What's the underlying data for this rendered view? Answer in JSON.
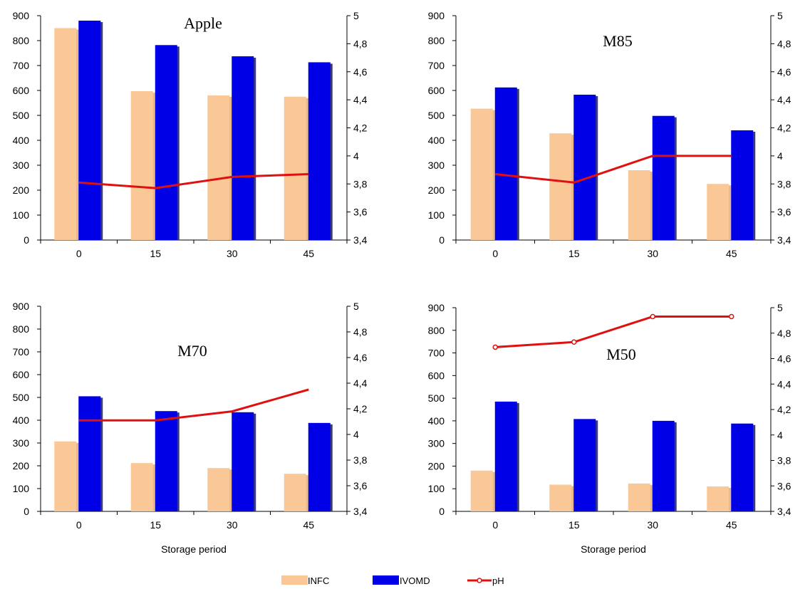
{
  "chart_data": [
    {
      "type": "bar",
      "title": "Apple",
      "categories": [
        "0",
        "15",
        "30",
        "45"
      ],
      "series": [
        {
          "name": "INFC",
          "values": [
            850,
            597,
            580,
            575
          ],
          "axis": "left",
          "color": "#FAC896"
        },
        {
          "name": "IVOMD",
          "values": [
            880,
            782,
            737,
            713
          ],
          "axis": "left",
          "color": "#0000E6"
        },
        {
          "name": "pH",
          "values": [
            3.81,
            3.77,
            3.85,
            3.87
          ],
          "axis": "right",
          "line": true,
          "color": "#E01010"
        }
      ],
      "xlabel": "",
      "ylim": [
        0,
        900
      ],
      "yticks": [
        "0",
        "100",
        "200",
        "300",
        "400",
        "500",
        "600",
        "700",
        "800",
        "900"
      ],
      "y2lim": [
        3.4,
        5
      ],
      "y2ticks": [
        "3,4",
        "3,6",
        "3,8",
        "4",
        "4,2",
        "4,4",
        "4,6",
        "4,8",
        "5"
      ]
    },
    {
      "type": "bar",
      "title": "M85",
      "categories": [
        "0",
        "15",
        "30",
        "45"
      ],
      "series": [
        {
          "name": "INFC",
          "values": [
            527,
            428,
            280,
            225
          ],
          "axis": "left",
          "color": "#FAC896"
        },
        {
          "name": "IVOMD",
          "values": [
            612,
            583,
            498,
            440
          ],
          "axis": "left",
          "color": "#0000E6"
        },
        {
          "name": "pH",
          "values": [
            3.87,
            3.81,
            4.0,
            4.0
          ],
          "axis": "right",
          "line": true,
          "color": "#E01010"
        }
      ],
      "xlabel": "",
      "ylim": [
        0,
        900
      ],
      "yticks": [
        "0",
        "100",
        "200",
        "300",
        "400",
        "500",
        "600",
        "700",
        "800",
        "900"
      ],
      "y2lim": [
        3.4,
        5
      ],
      "y2ticks": [
        "3,4",
        "3,6",
        "3,8",
        "4",
        "4,2",
        "4,4",
        "4,6",
        "4,8",
        "5"
      ]
    },
    {
      "type": "bar",
      "title": "M70",
      "categories": [
        "0",
        "15",
        "30",
        "45"
      ],
      "series": [
        {
          "name": "INFC",
          "values": [
            307,
            212,
            190,
            165
          ],
          "axis": "left",
          "color": "#FAC896"
        },
        {
          "name": "IVOMD",
          "values": [
            505,
            440,
            435,
            388
          ],
          "axis": "left",
          "color": "#0000E6"
        },
        {
          "name": "pH",
          "values": [
            4.11,
            4.11,
            4.18,
            4.35
          ],
          "axis": "right",
          "line": true,
          "color": "#E01010"
        }
      ],
      "xlabel": "Storage period",
      "ylim": [
        0,
        900
      ],
      "yticks": [
        "0",
        "100",
        "200",
        "300",
        "400",
        "500",
        "600",
        "700",
        "800",
        "900"
      ],
      "y2lim": [
        3.4,
        5
      ],
      "y2ticks": [
        "3,4",
        "3,6",
        "3,8",
        "4",
        "4,2",
        "4,4",
        "4,6",
        "4,8",
        "5"
      ]
    },
    {
      "type": "bar",
      "title": "M50",
      "categories": [
        "0",
        "15",
        "30",
        "45"
      ],
      "series": [
        {
          "name": "INFC",
          "values": [
            180,
            118,
            123,
            110
          ],
          "axis": "left",
          "color": "#FAC896"
        },
        {
          "name": "IVOMD",
          "values": [
            485,
            408,
            400,
            388
          ],
          "axis": "left",
          "color": "#0000E6"
        },
        {
          "name": "pH",
          "values": [
            4.69,
            4.73,
            4.93,
            4.93
          ],
          "axis": "right",
          "line": true,
          "markers": true,
          "color": "#E01010"
        }
      ],
      "xlabel": "Storage period",
      "ylim": [
        0,
        900
      ],
      "yticks": [
        "0",
        "100",
        "200",
        "300",
        "400",
        "500",
        "600",
        "700",
        "800",
        "900"
      ],
      "y2lim": [
        3.4,
        5
      ],
      "y2ticks": [
        "3,4",
        "3,6",
        "3,8",
        "4",
        "4,2",
        "4,4",
        "4,6",
        "4,8",
        "5"
      ]
    }
  ],
  "legend": {
    "placement": "bottom",
    "items": [
      {
        "label": "INFC",
        "kind": "bar",
        "color": "#FAC896"
      },
      {
        "label": "IVOMD",
        "kind": "bar",
        "color": "#0000E6"
      },
      {
        "label": "pH",
        "kind": "line",
        "color": "#E01010"
      }
    ]
  }
}
